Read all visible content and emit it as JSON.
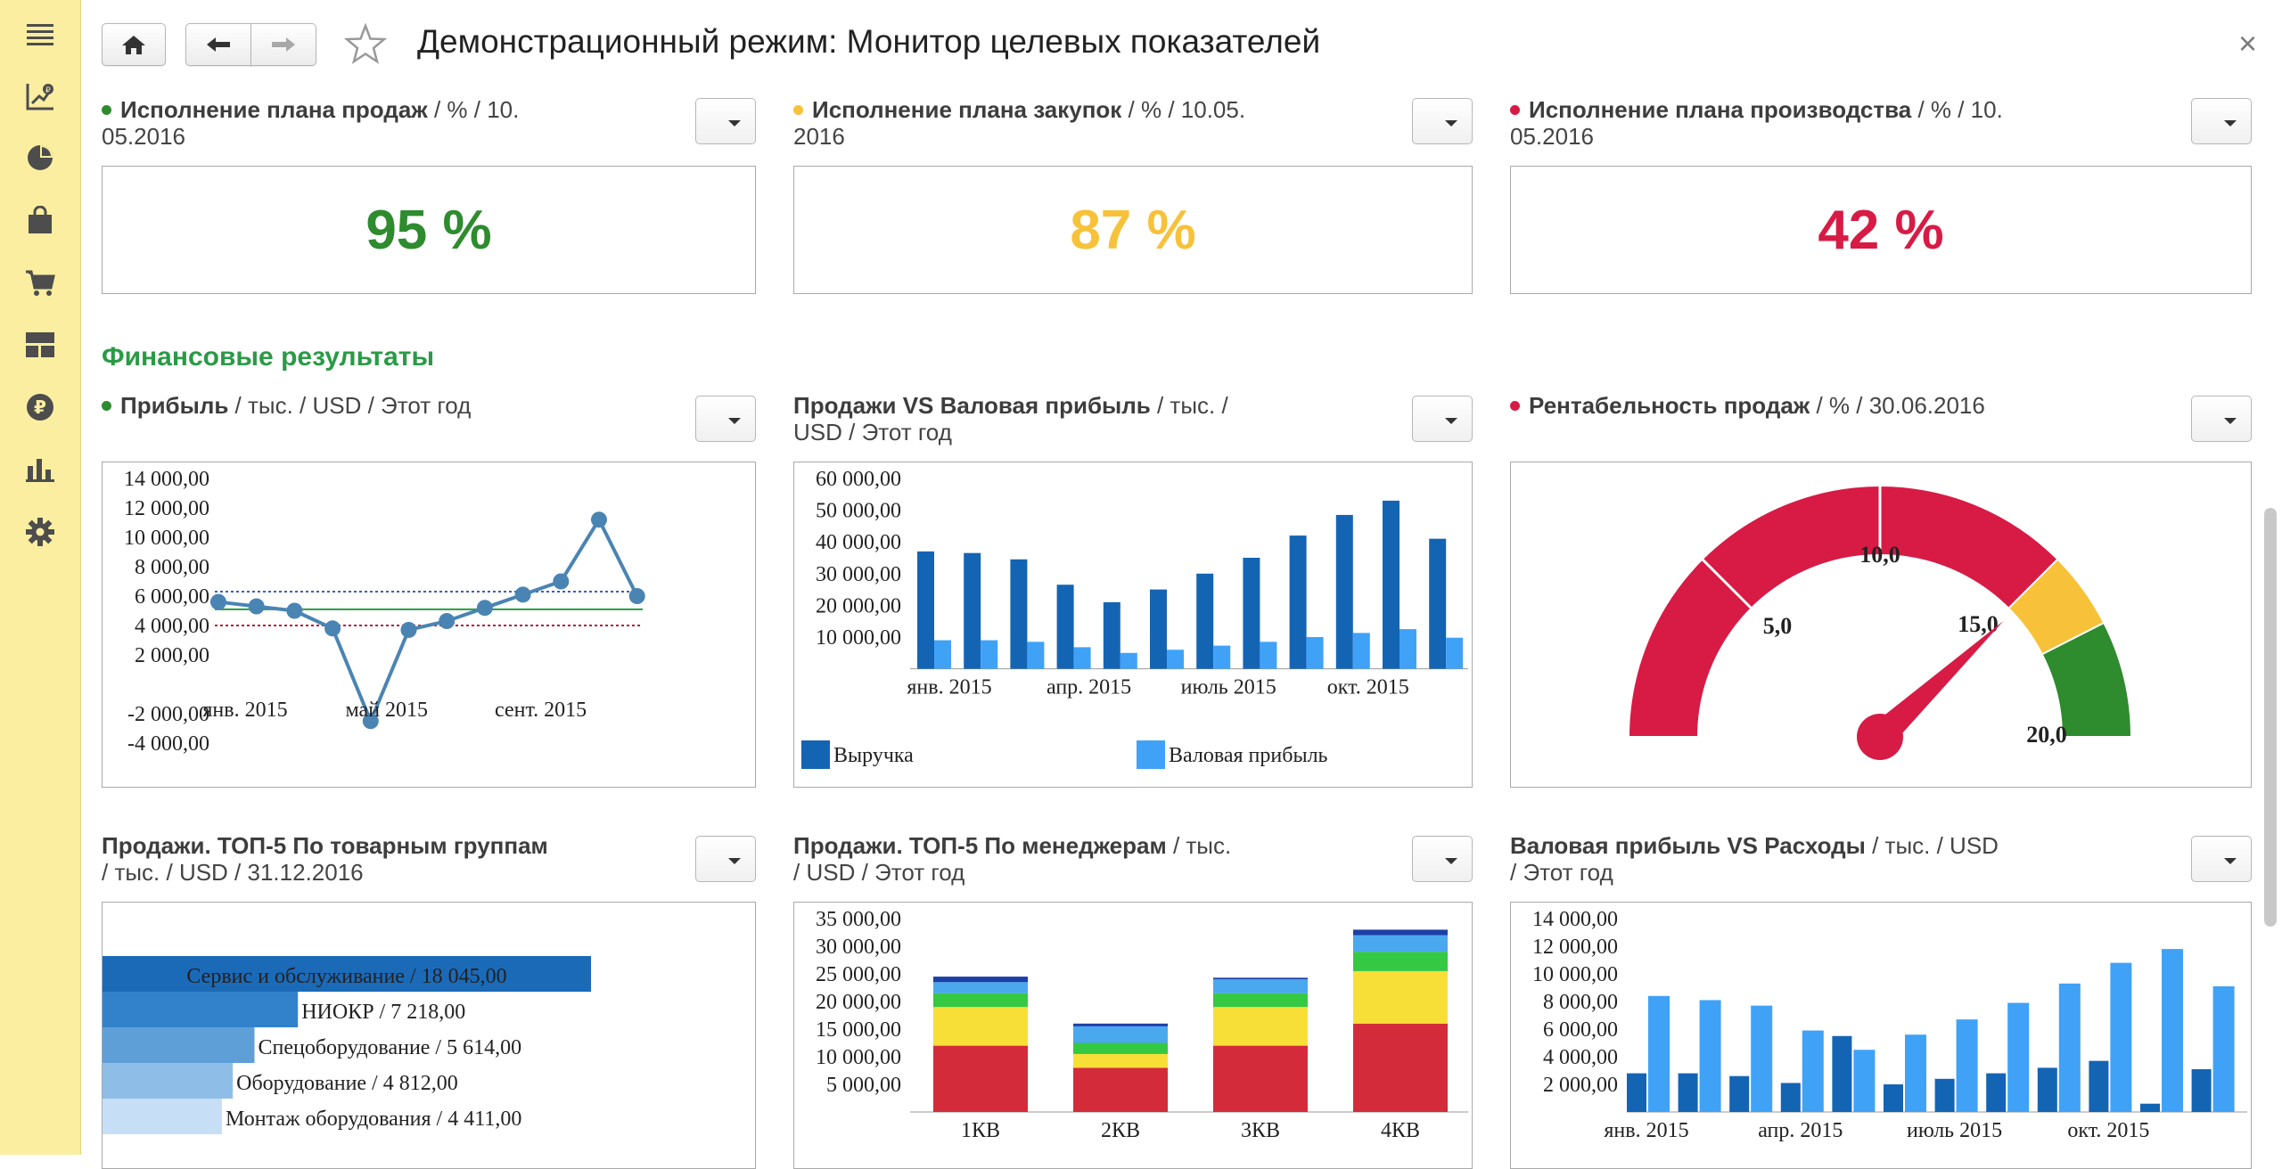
{
  "app": {
    "title": "Демонстрационный режим: Монитор целевых показателей",
    "close_label": "×"
  },
  "sidebar": {
    "items": [
      {
        "icon": "menu-icon"
      },
      {
        "icon": "ruble-chart-icon"
      },
      {
        "icon": "pie-chart-icon"
      },
      {
        "icon": "shopping-bag-icon"
      },
      {
        "icon": "cart-icon"
      },
      {
        "icon": "grid-icon"
      },
      {
        "icon": "ruble-coin-icon"
      },
      {
        "icon": "bar-chart-icon"
      },
      {
        "icon": "gear-icon"
      }
    ]
  },
  "colors": {
    "green": "#2e8b2e",
    "yellow": "#f7c23a",
    "red": "#d71b45",
    "section": "#2a9a46",
    "dark_blue": "#1464b4",
    "light_blue": "#3fa2f7"
  },
  "kpis": [
    {
      "title": "Исполнение плана продаж",
      "suffix": " / % / 10.",
      "suffix2": "05.2016",
      "value": "95 %",
      "dot": "#2e8b2e"
    },
    {
      "title": "Исполнение плана закупок",
      "suffix": " / % / 10.05.",
      "suffix2": "2016",
      "value": "87 %",
      "dot": "#f7c23a"
    },
    {
      "title": "Исполнение плана производства",
      "suffix": " / % / 10.",
      "suffix2": "05.2016",
      "value": "42 %",
      "dot": "#d71b45"
    }
  ],
  "section": {
    "title": "Финансовые результаты"
  },
  "widgets": {
    "profit": {
      "title": "Прибыль",
      "suffix": " / тыс. / USD / Этот год"
    },
    "sales_vs_gross": {
      "title": "Продажи VS Валовая прибыль",
      "suffix": " / тыс. /",
      "suffix2": "USD / Этот год"
    },
    "profitability": {
      "title": "Рентабельность продаж",
      "suffix": " / % / 30.06.2016"
    },
    "top5_groups": {
      "title": "Продажи. ТОП-5 По товарным группам",
      "suffix2": "/ тыс. / USD / 31.12.2016"
    },
    "top5_managers": {
      "title": "Продажи. ТОП-5 По менеджерам",
      "suffix": " / тыс.",
      "suffix2": "/ USD / Этот год"
    },
    "gross_vs_expenses": {
      "title": "Валовая прибыль VS Расходы",
      "suffix": " / тыс. / USD",
      "suffix2": "/ Этот год"
    }
  },
  "chart_data": [
    {
      "id": "profit",
      "type": "line",
      "y_ticks": [
        "14 000,00",
        "12 000,00",
        "10 000,00",
        "8 000,00",
        "6 000,00",
        "4 000,00",
        "2 000,00",
        "",
        "-2 000,00",
        "-4 000,00"
      ],
      "ylim": [
        -4000,
        14000
      ],
      "x_labels": [
        {
          "label": "янв. 2015",
          "index": 0
        },
        {
          "label": "май 2015",
          "index": 4
        },
        {
          "label": "сент. 2015",
          "index": 8
        }
      ],
      "series": [
        {
          "values": [
            5600,
            5300,
            5000,
            3800,
            -2500,
            3700,
            4300,
            5200,
            6100,
            7000,
            11200,
            6000
          ]
        }
      ],
      "reference_lines": [
        6300,
        5100,
        4000
      ]
    },
    {
      "id": "sales_vs_gross",
      "type": "bar",
      "y_ticks": [
        "60 000,00",
        "50 000,00",
        "40 000,00",
        "30 000,00",
        "20 000,00",
        "10 000,00"
      ],
      "ylim": [
        0,
        60000
      ],
      "x_labels": [
        {
          "label": "янв. 2015",
          "index": 0
        },
        {
          "label": "апр. 2015",
          "index": 3
        },
        {
          "label": "июль 2015",
          "index": 6
        },
        {
          "label": "окт. 2015",
          "index": 9
        }
      ],
      "series": [
        {
          "name": "Выручка",
          "values": [
            37000,
            36500,
            34500,
            26500,
            21000,
            25000,
            30000,
            35000,
            42000,
            48500,
            53000,
            41000
          ]
        },
        {
          "name": "Валовая прибыль",
          "values": [
            9000,
            9000,
            8500,
            6800,
            5000,
            6000,
            7300,
            8500,
            10000,
            11300,
            12500,
            9800
          ]
        }
      ]
    },
    {
      "id": "profitability",
      "type": "gauge",
      "min": 0,
      "max": 20,
      "value": 15.2,
      "labels": [
        "5,0",
        "10,0",
        "15,0",
        "20,0"
      ],
      "bands": [
        {
          "from": 0,
          "to": 15,
          "color": "#d71b45"
        },
        {
          "from": 15,
          "to": 17,
          "color": "#f7c23a"
        },
        {
          "from": 17,
          "to": 20,
          "color": "#2e8b2e"
        }
      ]
    },
    {
      "id": "top5_groups",
      "type": "bar",
      "orientation": "horizontal",
      "categories": [
        "Сервис и обслуживание / 18 045,00",
        "НИОКР / 7 218,00",
        "Спецоборудование / 5 614,00",
        "Оборудование / 4 812,00",
        "Монтаж оборудования / 4 411,00"
      ],
      "values": [
        18045,
        7218,
        5614,
        4812,
        4411
      ]
    },
    {
      "id": "top5_managers",
      "type": "bar",
      "stacked": true,
      "y_ticks": [
        "35 000,00",
        "30 000,00",
        "25 000,00",
        "20 000,00",
        "15 000,00",
        "10 000,00",
        "5 000,00"
      ],
      "ylim": [
        0,
        35000
      ],
      "categories": [
        "1КВ",
        "2КВ",
        "3КВ",
        "4КВ"
      ],
      "series": [
        {
          "values": [
            12000,
            8000,
            12000,
            16000
          ],
          "color": "#d42b3a"
        },
        {
          "values": [
            7000,
            2500,
            7000,
            9500
          ],
          "color": "#f8df37"
        },
        {
          "values": [
            2500,
            2000,
            2500,
            3500
          ],
          "color": "#35c843"
        },
        {
          "values": [
            2000,
            3000,
            2500,
            3000
          ],
          "color": "#4aa8ee"
        },
        {
          "values": [
            1000,
            500,
            300,
            1000
          ],
          "color": "#1d3fa8"
        }
      ]
    },
    {
      "id": "gross_vs_expenses",
      "type": "bar",
      "y_ticks": [
        "14 000,00",
        "12 000,00",
        "10 000,00",
        "8 000,00",
        "6 000,00",
        "4 000,00",
        "2 000,00"
      ],
      "ylim": [
        0,
        14000
      ],
      "x_labels": [
        {
          "label": "янв. 2015",
          "index": 0
        },
        {
          "label": "апр. 2015",
          "index": 3
        },
        {
          "label": "июль 2015",
          "index": 6
        },
        {
          "label": "окт. 2015",
          "index": 9
        }
      ],
      "series": [
        {
          "values": [
            2800,
            2800,
            2600,
            2100,
            5500,
            2000,
            2400,
            2800,
            3200,
            3700,
            600,
            3100
          ]
        },
        {
          "values": [
            8400,
            8100,
            7700,
            5900,
            4500,
            5600,
            6700,
            7900,
            9300,
            10800,
            11800,
            9100
          ]
        }
      ]
    }
  ]
}
